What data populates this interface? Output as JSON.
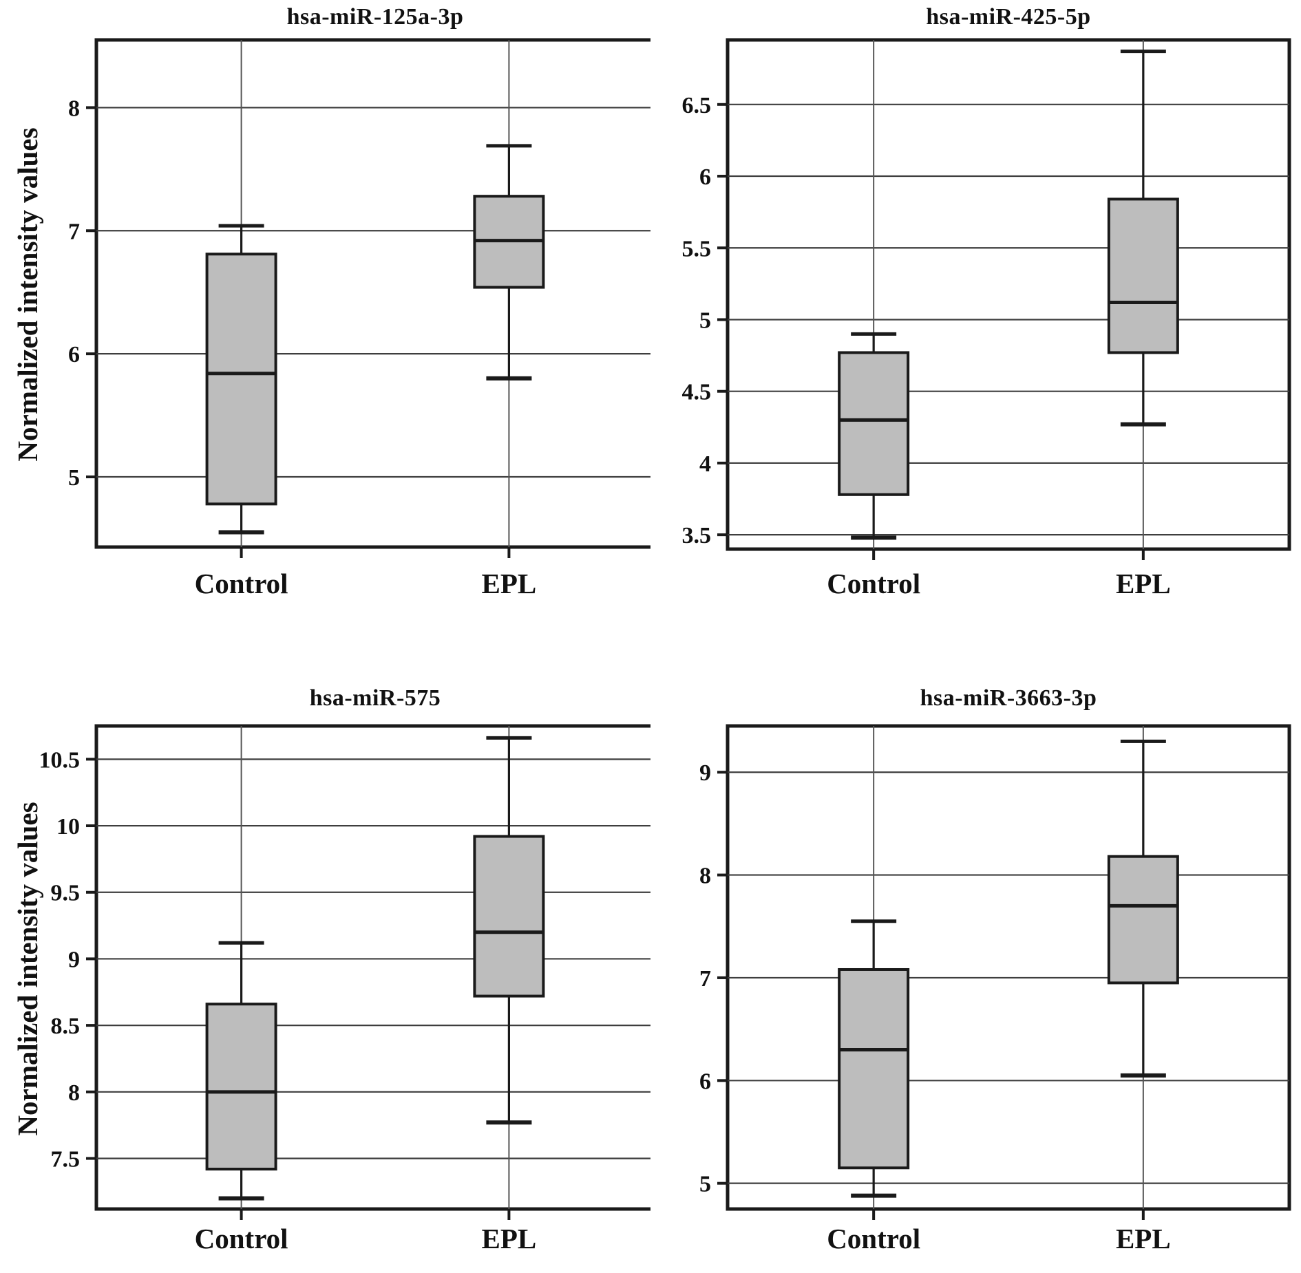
{
  "figure": {
    "background": "#ffffff",
    "ink_color": "#1a1a1a",
    "grid_color": "#3e3e3e",
    "category_line_color": "#555555",
    "box_fill": "#bdbdbd",
    "y_axis_label": "Normalized intensity values"
  },
  "chart_data": [
    {
      "type": "box",
      "title": "hsa-miR-125a-3p",
      "ylabel": "Normalized intensity values",
      "has_ylabel": true,
      "categories": [
        "Control",
        "EPL"
      ],
      "yticks": [
        5,
        6,
        7,
        8
      ],
      "ylim": [
        4.43,
        8.55
      ],
      "grid": true,
      "legend_position": "none",
      "series": [
        {
          "name": "Control",
          "whisker_low": 4.55,
          "q1": 4.78,
          "median": 5.84,
          "q3": 6.81,
          "whisker_high": 7.04
        },
        {
          "name": "EPL",
          "whisker_low": 5.8,
          "q1": 6.54,
          "median": 6.92,
          "q3": 7.28,
          "whisker_high": 7.69
        }
      ]
    },
    {
      "type": "box",
      "title": "hsa-miR-425-5p",
      "ylabel": "",
      "has_ylabel": false,
      "categories": [
        "Control",
        "EPL"
      ],
      "yticks": [
        3.5,
        4,
        4.5,
        5,
        5.5,
        6,
        6.5
      ],
      "ylim": [
        3.4,
        6.95
      ],
      "grid": true,
      "legend_position": "none",
      "series": [
        {
          "name": "Control",
          "whisker_low": 3.48,
          "q1": 3.78,
          "median": 4.3,
          "q3": 4.77,
          "whisker_high": 4.9
        },
        {
          "name": "EPL",
          "whisker_low": 4.27,
          "q1": 4.77,
          "median": 5.12,
          "q3": 5.84,
          "whisker_high": 6.87
        }
      ]
    },
    {
      "type": "box",
      "title": "hsa-miR-575",
      "ylabel": "Normalized intensity values",
      "has_ylabel": true,
      "categories": [
        "Control",
        "EPL"
      ],
      "yticks": [
        7.5,
        8,
        8.5,
        9,
        9.5,
        10,
        10.5
      ],
      "ylim": [
        7.12,
        10.75
      ],
      "grid": true,
      "legend_position": "none",
      "series": [
        {
          "name": "Control",
          "whisker_low": 7.2,
          "q1": 7.42,
          "median": 8.0,
          "q3": 8.66,
          "whisker_high": 9.12
        },
        {
          "name": "EPL",
          "whisker_low": 7.77,
          "q1": 8.72,
          "median": 9.2,
          "q3": 9.92,
          "whisker_high": 10.66
        }
      ]
    },
    {
      "type": "box",
      "title": "hsa-miR-3663-3p",
      "ylabel": "",
      "has_ylabel": false,
      "categories": [
        "Control",
        "EPL"
      ],
      "yticks": [
        5,
        6,
        7,
        8,
        9
      ],
      "ylim": [
        4.75,
        9.45
      ],
      "grid": true,
      "legend_position": "none",
      "series": [
        {
          "name": "Control",
          "whisker_low": 4.88,
          "q1": 5.15,
          "median": 6.3,
          "q3": 7.08,
          "whisker_high": 7.55
        },
        {
          "name": "EPL",
          "whisker_low": 6.05,
          "q1": 6.95,
          "median": 7.7,
          "q3": 8.18,
          "whisker_high": 9.3
        }
      ]
    }
  ]
}
